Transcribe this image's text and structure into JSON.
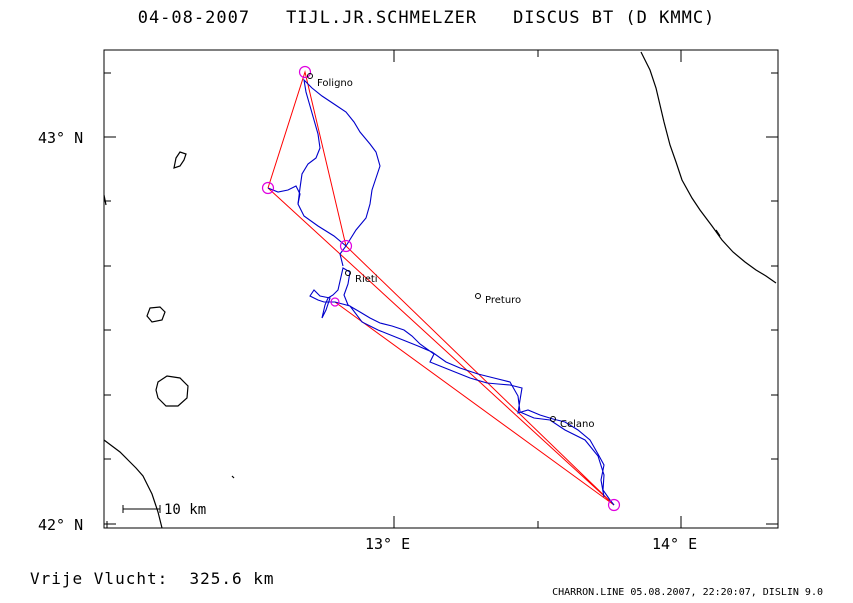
{
  "header": {
    "date": "04-08-2007",
    "pilot": "TIJL.JR.SCHMELZER",
    "glider": "DISCUS BT (D KMMC)"
  },
  "axes": {
    "lat_labels": [
      "43° N",
      "42° N"
    ],
    "lon_labels": [
      "13° E",
      "14° E"
    ]
  },
  "scale_bar": {
    "label": "10 km"
  },
  "places": [
    {
      "name": "Foligno"
    },
    {
      "name": "Rieti"
    },
    {
      "name": "Preturo"
    },
    {
      "name": "Celano"
    }
  ],
  "footer": {
    "distance": "Vrije Vlucht:  325.6 km",
    "credits": "CHARRON.LINE 05.08.2007, 22:20:07, DISLIN 9.0"
  },
  "colors": {
    "track": "#0000cc",
    "task_line": "#ff0000",
    "turnpoint": "#e000e0",
    "coast": "#000000"
  }
}
